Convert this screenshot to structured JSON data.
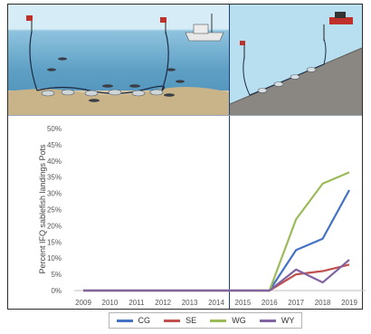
{
  "chart_data": {
    "type": "line",
    "title": "",
    "xlabel": "",
    "ylabel": "Percent IFQ sablefish landings Pots",
    "x": [
      "2009",
      "2010",
      "2011",
      "2012",
      "2013",
      "2014",
      "2015",
      "2016",
      "2017",
      "2018",
      "2019"
    ],
    "ylim": [
      0,
      50
    ],
    "yticks": [
      "0%",
      "5%",
      "10%",
      "15%",
      "20%",
      "25%",
      "30%",
      "35%",
      "40%",
      "45%",
      "50%"
    ],
    "grid": false,
    "legend_position": "bottom",
    "series": [
      {
        "name": "CG",
        "color": "#4472c4",
        "values": [
          0,
          0,
          0,
          0,
          0,
          0,
          0,
          0,
          12.5,
          16,
          31
        ]
      },
      {
        "name": "SE",
        "color": "#c0504d",
        "values": [
          0,
          0,
          0,
          0,
          0,
          0,
          0,
          0,
          5,
          6,
          8
        ]
      },
      {
        "name": "WG",
        "color": "#9bbb59",
        "values": [
          0,
          0,
          0,
          0,
          0,
          0,
          0,
          0,
          22,
          33,
          36.5
        ]
      },
      {
        "name": "WY",
        "color": "#8064a2",
        "values": [
          0,
          0,
          0,
          0,
          0,
          0,
          0,
          0,
          6.5,
          2.5,
          9.5
        ]
      }
    ]
  }
}
